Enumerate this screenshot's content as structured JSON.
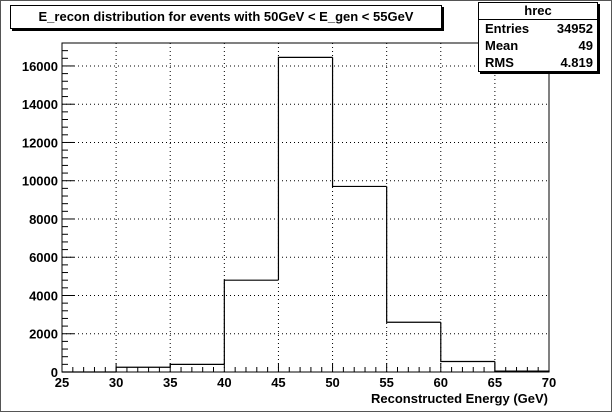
{
  "chart_data": {
    "type": "bar",
    "histogram": true,
    "title": "E_recon distribution for events with 50GeV < E_gen < 55GeV",
    "xlabel": "Reconstructed Energy (GeV)",
    "ylabel": "",
    "xlim": [
      25,
      70
    ],
    "ylim": [
      0,
      17200
    ],
    "grid": true,
    "bin_edges": [
      25,
      30,
      35,
      40,
      45,
      50,
      55,
      60,
      65,
      70
    ],
    "values": [
      0,
      250,
      400,
      4800,
      16450,
      9700,
      2600,
      550,
      50
    ],
    "x_ticks": [
      "25",
      "30",
      "35",
      "40",
      "45",
      "50",
      "55",
      "60",
      "65",
      "70"
    ],
    "y_ticks": [
      "0",
      "2000",
      "4000",
      "6000",
      "8000",
      "10000",
      "12000",
      "14000",
      "16000"
    ],
    "stats": {
      "name": "hrec",
      "rows": [
        {
          "label": "Entries",
          "value": "34952"
        },
        {
          "label": "Mean",
          "value": "49"
        },
        {
          "label": "RMS",
          "value": "4.819"
        }
      ]
    }
  }
}
